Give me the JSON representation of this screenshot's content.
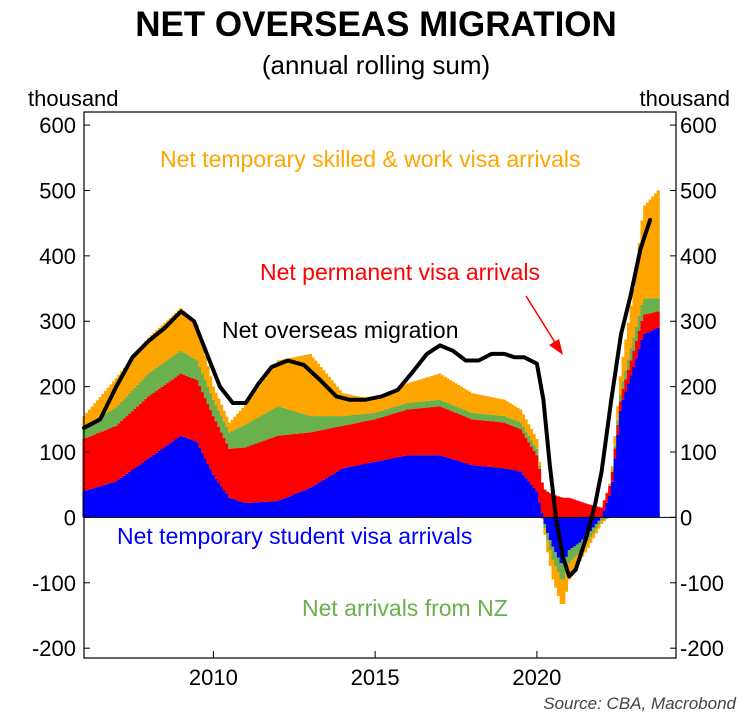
{
  "chart_data": {
    "type": "bar",
    "title": "NET OVERSEAS MIGRATION",
    "subtitle": "(annual rolling sum)",
    "ylabel_left": "thousand",
    "ylabel_right": "thousand",
    "ylim": [
      -215,
      620
    ],
    "yticks": [
      600,
      500,
      400,
      300,
      200,
      100,
      0,
      -100,
      -200
    ],
    "ytick_labels": [
      "600",
      "500",
      "400",
      "300",
      "200",
      "100",
      "0",
      "-100",
      "-200"
    ],
    "xlim": [
      2006.0,
      2024.3
    ],
    "xticks": [
      2010,
      2015,
      2020
    ],
    "xtick_labels": [
      "2010",
      "2015",
      "2020"
    ],
    "grid": false,
    "stack_order": [
      "Net temporary student visa arrivals",
      "Net permanent visa arrivals",
      "Net arrivals from NZ",
      "Net temporary skilled & work visa arrivals"
    ],
    "series": [
      {
        "name": "Net temporary student visa arrivals",
        "color": "#0000ff",
        "kind": "stacked-bar",
        "x": [
          2006.0,
          2007.0,
          2008.0,
          2009.0,
          2009.5,
          2010.0,
          2010.5,
          2011.0,
          2012.0,
          2013.0,
          2014.0,
          2015.0,
          2016.0,
          2017.0,
          2018.0,
          2019.0,
          2019.5,
          2020.0,
          2020.3,
          2020.5,
          2020.8,
          2021.0,
          2021.3,
          2021.6,
          2022.0,
          2022.3,
          2022.6,
          2023.0,
          2023.3,
          2023.75
        ],
        "values": [
          40,
          55,
          90,
          125,
          115,
          65,
          30,
          22,
          25,
          45,
          75,
          85,
          95,
          95,
          80,
          75,
          70,
          40,
          -20,
          -45,
          -75,
          -50,
          -40,
          -25,
          0,
          40,
          170,
          230,
          280,
          290
        ]
      },
      {
        "name": "Net permanent visa arrivals",
        "color": "#ff0000",
        "kind": "stacked-bar",
        "x": [
          2006.0,
          2007.0,
          2008.0,
          2009.0,
          2009.5,
          2010.0,
          2010.5,
          2011.0,
          2012.0,
          2013.0,
          2014.0,
          2015.0,
          2016.0,
          2017.0,
          2018.0,
          2019.0,
          2019.5,
          2020.0,
          2020.3,
          2020.5,
          2020.8,
          2021.0,
          2021.3,
          2021.6,
          2022.0,
          2022.3,
          2022.6,
          2023.0,
          2023.3,
          2023.75
        ],
        "values": [
          80,
          85,
          95,
          95,
          95,
          90,
          75,
          85,
          100,
          85,
          65,
          65,
          70,
          75,
          70,
          70,
          65,
          55,
          40,
          35,
          30,
          30,
          25,
          20,
          15,
          15,
          15,
          25,
          30,
          25
        ]
      },
      {
        "name": "Net arrivals from NZ",
        "color": "#6ab04c",
        "kind": "stacked-bar",
        "x": [
          2006.0,
          2007.0,
          2008.0,
          2009.0,
          2009.5,
          2010.0,
          2010.5,
          2011.0,
          2012.0,
          2013.0,
          2014.0,
          2015.0,
          2016.0,
          2017.0,
          2018.0,
          2019.0,
          2019.5,
          2020.0,
          2020.3,
          2020.5,
          2020.8,
          2021.0,
          2021.3,
          2021.6,
          2022.0,
          2022.3,
          2022.6,
          2023.0,
          2023.3,
          2023.75
        ],
        "values": [
          20,
          28,
          35,
          35,
          30,
          25,
          25,
          35,
          45,
          25,
          15,
          10,
          10,
          10,
          10,
          10,
          10,
          10,
          -10,
          -20,
          -25,
          -20,
          -15,
          -10,
          -5,
          0,
          10,
          20,
          25,
          20
        ]
      },
      {
        "name": "Net temporary skilled & work visa arrivals",
        "color": "#ffa500",
        "kind": "stacked-bar",
        "x": [
          2006.0,
          2007.0,
          2008.0,
          2009.0,
          2009.5,
          2010.0,
          2010.5,
          2011.0,
          2012.0,
          2013.0,
          2014.0,
          2015.0,
          2016.0,
          2017.0,
          2018.0,
          2019.0,
          2019.5,
          2020.0,
          2020.3,
          2020.5,
          2020.8,
          2021.0,
          2021.3,
          2021.6,
          2022.0,
          2022.3,
          2022.6,
          2023.0,
          2023.3,
          2023.75
        ],
        "values": [
          15,
          45,
          55,
          65,
          55,
          20,
          15,
          30,
          70,
          95,
          35,
          20,
          30,
          40,
          30,
          25,
          20,
          15,
          -15,
          -30,
          -40,
          -25,
          -15,
          -10,
          -5,
          5,
          30,
          75,
          140,
          165
        ]
      },
      {
        "name": "Net overseas migration",
        "color": "#000000",
        "kind": "line",
        "x": [
          2006.0,
          2006.5,
          2007.0,
          2007.5,
          2008.0,
          2008.5,
          2009.0,
          2009.4,
          2009.8,
          2010.2,
          2010.6,
          2011.0,
          2011.4,
          2011.8,
          2012.3,
          2012.8,
          2013.3,
          2013.8,
          2014.2,
          2014.7,
          2015.2,
          2015.7,
          2016.2,
          2016.6,
          2017.0,
          2017.4,
          2017.8,
          2018.2,
          2018.6,
          2019.0,
          2019.3,
          2019.6,
          2020.0,
          2020.2,
          2020.4,
          2020.6,
          2020.8,
          2021.0,
          2021.2,
          2021.5,
          2021.8,
          2022.0,
          2022.3,
          2022.6,
          2022.9,
          2023.2,
          2023.5
        ],
        "values": [
          137,
          150,
          200,
          245,
          270,
          290,
          315,
          300,
          250,
          200,
          175,
          175,
          205,
          230,
          240,
          233,
          210,
          185,
          180,
          180,
          185,
          195,
          225,
          250,
          263,
          255,
          240,
          240,
          250,
          250,
          245,
          245,
          235,
          180,
          80,
          -5,
          -60,
          -90,
          -80,
          -35,
          20,
          70,
          180,
          280,
          340,
          410,
          455
        ]
      }
    ],
    "annotations": [
      {
        "text": "Net temporary skilled & work visa arrivals",
        "color": "#ffa500"
      },
      {
        "text": "Net permanent visa arrivals",
        "color": "#ff0000"
      },
      {
        "text": "Net overseas migration",
        "color": "#000000"
      },
      {
        "text": "Net temporary student visa arrivals",
        "color": "#0000ff"
      },
      {
        "text": "Net arrivals from NZ",
        "color": "#6ab04c"
      }
    ]
  },
  "source": "Source: CBA, Macrobond"
}
